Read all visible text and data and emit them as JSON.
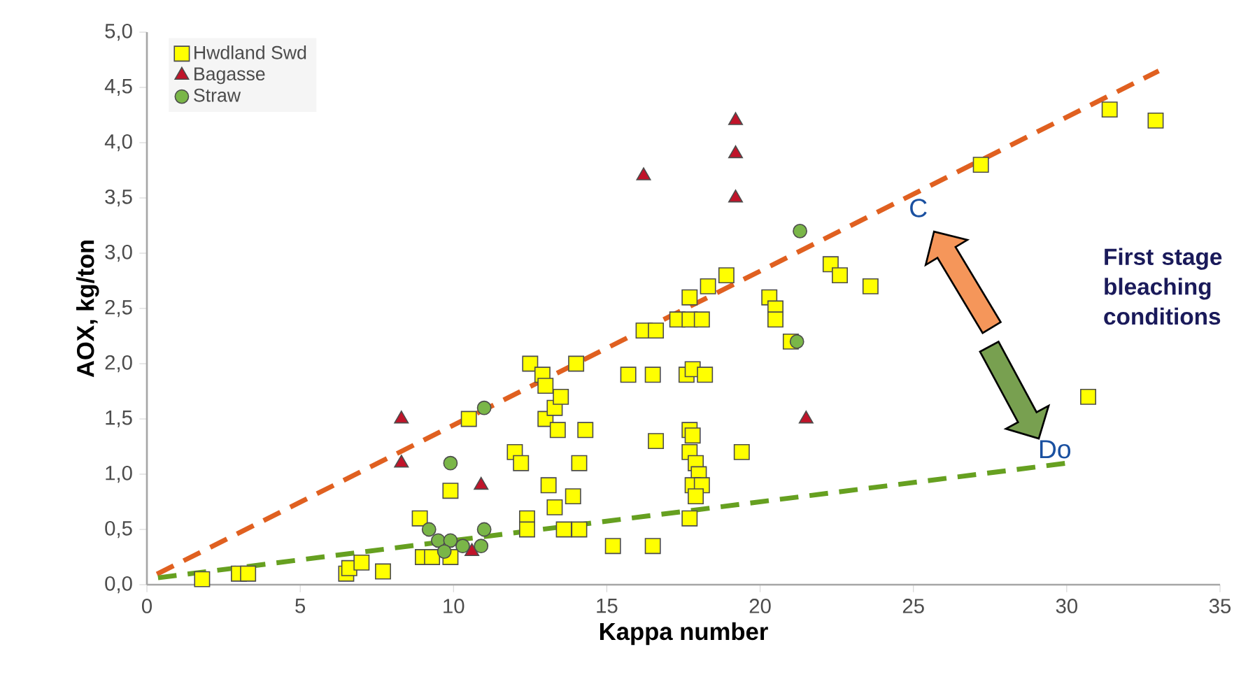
{
  "chart_data": {
    "type": "scatter",
    "xlabel": "Kappa number",
    "ylabel": "AOX, kg/ton",
    "xlim": [
      0,
      35
    ],
    "ylim": [
      0,
      5
    ],
    "xticks": [
      0,
      5,
      10,
      15,
      20,
      25,
      30,
      35
    ],
    "yticks": [
      {
        "value": 0,
        "label": "0,0"
      },
      {
        "value": 0.5,
        "label": "0,5"
      },
      {
        "value": 1,
        "label": "1,0"
      },
      {
        "value": 1.5,
        "label": "1,5"
      },
      {
        "value": 2,
        "label": "2,0"
      },
      {
        "value": 2.5,
        "label": "2,5"
      },
      {
        "value": 3,
        "label": "3,0"
      },
      {
        "value": 3.5,
        "label": "3,5"
      },
      {
        "value": 4,
        "label": "4,0"
      },
      {
        "value": 4.5,
        "label": "4,5"
      },
      {
        "value": 5,
        "label": "5,0"
      }
    ],
    "legend": "top left",
    "series": [
      {
        "name": "Hwdland Swd",
        "color": "#ffff00",
        "marker": "square",
        "x": [
          1.8,
          3,
          3.3,
          6.5,
          6.6,
          7,
          7.7,
          8.9,
          9,
          9.3,
          9.9,
          9.9,
          10.5,
          12,
          12.2,
          12.4,
          12.4,
          12.5,
          12.9,
          13,
          13,
          13.1,
          13.3,
          13.3,
          13.5,
          13.4,
          13.6,
          13.9,
          14,
          14.1,
          14.3,
          14.1,
          15.2,
          15.7,
          16.2,
          16.5,
          16.6,
          16.6,
          16.5,
          17.3,
          17.7,
          17.6,
          17.8,
          18.2,
          17.7,
          18.1,
          18.3,
          18.9,
          17.7,
          17.8,
          17.7,
          17.9,
          18,
          17.8,
          18.1,
          17.9,
          17.7,
          19.4,
          20.3,
          20.5,
          20.5,
          21,
          22.3,
          22.6,
          23.6,
          27.2,
          31.4,
          32.9,
          30.7
        ],
        "values": [
          0.05,
          0.1,
          0.1,
          0.1,
          0.15,
          0.2,
          0.12,
          0.6,
          0.25,
          0.25,
          0.25,
          0.85,
          1.5,
          1.2,
          1.1,
          0.6,
          0.5,
          2.0,
          1.9,
          1.8,
          1.5,
          0.9,
          0.7,
          1.6,
          1.7,
          1.4,
          0.5,
          0.8,
          2.0,
          1.1,
          1.4,
          0.5,
          0.35,
          1.9,
          2.3,
          1.9,
          2.3,
          1.3,
          0.35,
          2.4,
          2.6,
          1.9,
          1.95,
          1.9,
          2.4,
          2.4,
          2.7,
          2.8,
          1.4,
          1.35,
          1.2,
          1.1,
          1.0,
          0.9,
          0.9,
          0.8,
          0.6,
          1.2,
          2.6,
          2.5,
          2.4,
          2.2,
          2.9,
          2.8,
          2.7,
          3.8,
          4.3,
          4.2,
          1.7
        ]
      },
      {
        "name": "Bagasse",
        "color": "#c0142a",
        "marker": "triangle",
        "x": [
          8.3,
          8.3,
          10.9,
          10.6,
          16.2,
          19.2,
          19.2,
          19.2,
          21.5
        ],
        "values": [
          1.5,
          1.1,
          0.9,
          0.3,
          3.7,
          4.2,
          3.9,
          3.5,
          1.5
        ]
      },
      {
        "name": "Straw",
        "color": "#7ab648",
        "marker": "circle",
        "x": [
          9.9,
          11,
          21.3,
          21.2,
          9.5,
          9.2,
          9.9,
          10.3,
          11,
          10.9,
          9.7
        ],
        "values": [
          1.1,
          1.6,
          3.2,
          2.2,
          0.4,
          0.5,
          0.4,
          0.35,
          0.5,
          0.35,
          0.3
        ]
      },
      {
        "type": "line",
        "color": "#e06020",
        "line_style": "dashed",
        "marker": "none",
        "x": [
          0,
          33
        ],
        "values": [
          0.05,
          4.65
        ]
      },
      {
        "type": "line",
        "color": "#66a020",
        "line_style": "dashed",
        "marker": "none",
        "x": [
          0,
          30
        ],
        "values": [
          0.05,
          1.1
        ]
      }
    ],
    "annotations": [
      {
        "text": "C",
        "x": 24.9,
        "y": 3.58
      },
      "Do",
      "First stage bleaching conditions"
    ]
  }
}
